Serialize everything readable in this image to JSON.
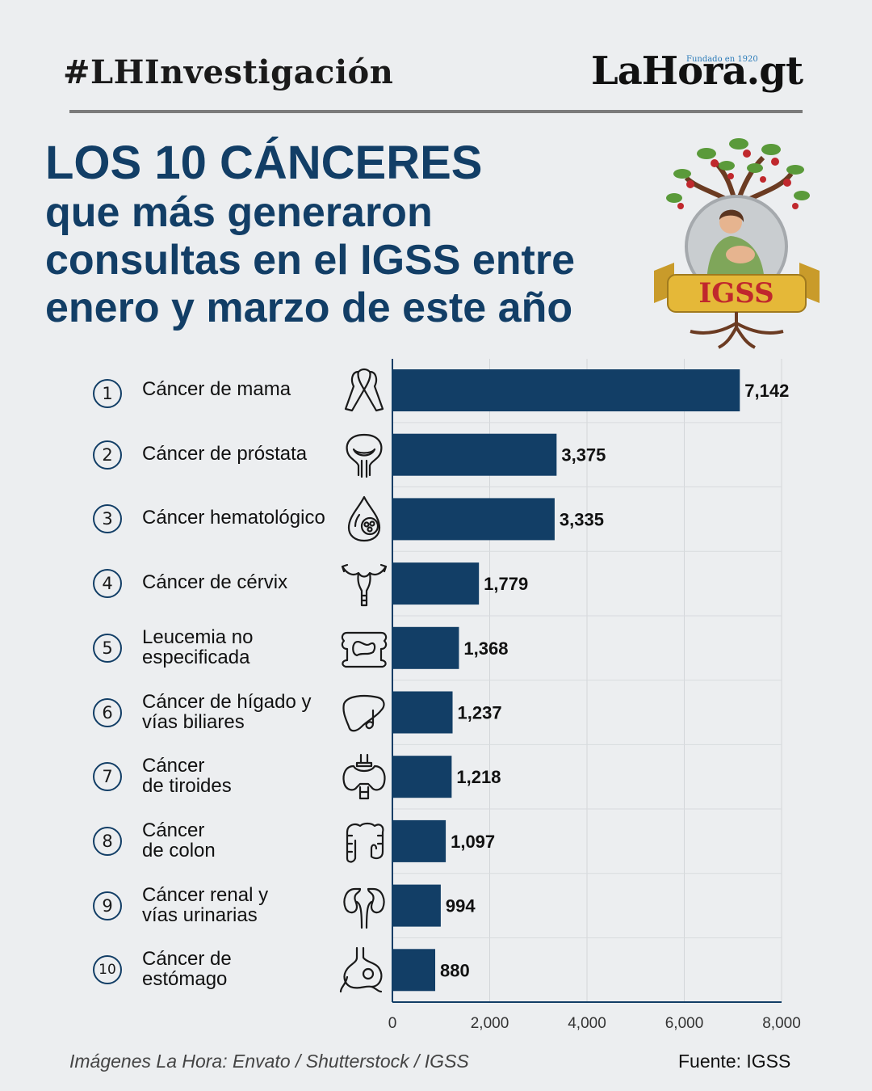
{
  "header": {
    "hashtag": "#LHInvestigación",
    "brand": "LaHora.gt",
    "brand_tagline": "Fundado en 1920"
  },
  "title": {
    "line1": "LOS 10 CÁNCERES",
    "line2": "que más generaron",
    "line3": "consultas en el IGSS entre",
    "line4": "enero y marzo de este año"
  },
  "logo": {
    "text": "IGSS"
  },
  "items": [
    {
      "rank": "1",
      "label": "Cáncer de mama",
      "icon": "ribbon-icon"
    },
    {
      "rank": "2",
      "label": "Cáncer de próstata",
      "icon": "prostate-icon"
    },
    {
      "rank": "3",
      "label": "Cáncer hematológico",
      "icon": "blood-drop-icon"
    },
    {
      "rank": "4",
      "label": "Cáncer de cérvix",
      "icon": "uterus-icon"
    },
    {
      "rank": "5",
      "label": "Leucemia no\nespecificada",
      "icon": "bone-icon"
    },
    {
      "rank": "6",
      "label": "Cáncer de hígado y\nvías biliares",
      "icon": "liver-icon"
    },
    {
      "rank": "7",
      "label": "Cáncer\nde tiroides",
      "icon": "thyroid-icon"
    },
    {
      "rank": "8",
      "label": "Cáncer\nde colon",
      "icon": "colon-icon"
    },
    {
      "rank": "9",
      "label": "Cáncer renal y\nvías urinarias",
      "icon": "kidneys-icon"
    },
    {
      "rank": "10",
      "label": "Cáncer de\nestómago",
      "icon": "stomach-icon"
    }
  ],
  "chart_data": {
    "type": "bar",
    "orientation": "horizontal",
    "categories": [
      "Cáncer de mama",
      "Cáncer de próstata",
      "Cáncer hematológico",
      "Cáncer de cérvix",
      "Leucemia no especificada",
      "Cáncer de hígado y vías biliares",
      "Cáncer de tiroides",
      "Cáncer de colon",
      "Cáncer renal y vías urinarias",
      "Cáncer de estómago"
    ],
    "values": [
      7142,
      3375,
      3335,
      1779,
      1368,
      1237,
      1218,
      1097,
      994,
      880
    ],
    "value_labels": [
      "7,142",
      "3,375",
      "3,335",
      "1,779",
      "1,368",
      "1,237",
      "1,218",
      "1,097",
      "994",
      "880"
    ],
    "xlim": [
      0,
      8000
    ],
    "xticks": [
      0,
      2000,
      4000,
      6000,
      8000
    ],
    "xtick_labels": [
      "0",
      "2,000",
      "4,000",
      "6,000",
      "8,000"
    ],
    "grid": true,
    "bar_color": "#123e66"
  },
  "footer": {
    "credits": "Imágenes La Hora: Envato / Shutterstock / IGSS",
    "source": "Fuente: IGSS"
  },
  "colors": {
    "navy": "#123e66",
    "background": "#eceef0",
    "gold": "#d9a92c",
    "red": "#c0282d"
  }
}
